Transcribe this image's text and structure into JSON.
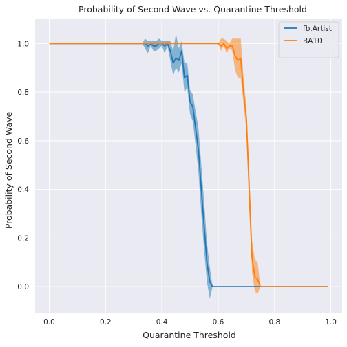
{
  "chart_data": {
    "type": "line",
    "title": "Probability of Second Wave vs. Quarantine Threshold",
    "xlabel": "Quarantine Threshold",
    "ylabel": "Probability of Second Wave",
    "xlim": [
      -0.05,
      1.04
    ],
    "ylim": [
      -0.11,
      1.1
    ],
    "xticks": [
      0.0,
      0.2,
      0.4,
      0.6,
      0.8,
      1.0
    ],
    "xtick_labels": [
      "0.0",
      "0.2",
      "0.4",
      "0.6",
      "0.8",
      "1.0"
    ],
    "yticks": [
      0.0,
      0.2,
      0.4,
      0.6,
      0.8,
      1.0
    ],
    "ytick_labels": [
      "0.0",
      "0.2",
      "0.4",
      "0.6",
      "0.8",
      "1.0"
    ],
    "grid": true,
    "legend_position": "top-right",
    "background": "#EAEAF2",
    "series": [
      {
        "name": "fb.Artist",
        "color": "#1F77B4",
        "x": [
          0.0,
          0.33,
          0.34,
          0.35,
          0.36,
          0.37,
          0.38,
          0.39,
          0.4,
          0.41,
          0.42,
          0.43,
          0.44,
          0.45,
          0.46,
          0.47,
          0.48,
          0.49,
          0.5,
          0.51,
          0.52,
          0.53,
          0.54,
          0.55,
          0.56,
          0.57,
          0.58,
          0.99
        ],
        "y": [
          1.0,
          1.0,
          1.0,
          0.99,
          1.0,
          0.99,
          0.99,
          1.0,
          1.0,
          0.99,
          1.0,
          0.97,
          0.92,
          0.94,
          0.93,
          0.97,
          0.86,
          0.87,
          0.76,
          0.74,
          0.65,
          0.56,
          0.4,
          0.25,
          0.1,
          0.02,
          0.0,
          0.0
        ],
        "low": [
          1.0,
          1.0,
          0.98,
          0.96,
          0.99,
          0.97,
          0.97,
          0.98,
          0.99,
          0.96,
          0.99,
          0.93,
          0.87,
          0.9,
          0.88,
          0.92,
          0.8,
          0.82,
          0.71,
          0.68,
          0.58,
          0.47,
          0.3,
          0.15,
          0.02,
          -0.05,
          0.0,
          0.0
        ],
        "high": [
          1.0,
          1.0,
          1.02,
          1.01,
          1.01,
          1.01,
          1.01,
          1.02,
          1.01,
          1.01,
          1.01,
          1.01,
          0.97,
          1.04,
          0.98,
          1.01,
          0.92,
          0.92,
          0.81,
          0.79,
          0.72,
          0.65,
          0.5,
          0.35,
          0.18,
          0.08,
          0.0,
          0.0
        ]
      },
      {
        "name": "BA10",
        "color": "#FF7F0E",
        "x": [
          0.0,
          0.41,
          0.42,
          0.43,
          0.6,
          0.61,
          0.62,
          0.63,
          0.64,
          0.65,
          0.66,
          0.67,
          0.68,
          0.69,
          0.7,
          0.71,
          0.72,
          0.73,
          0.74,
          0.75,
          0.99
        ],
        "y": [
          1.0,
          1.0,
          1.0,
          1.0,
          1.0,
          0.99,
          1.0,
          0.98,
          0.99,
          0.99,
          0.95,
          0.93,
          0.94,
          0.8,
          0.69,
          0.4,
          0.12,
          0.04,
          0.03,
          0.0,
          0.0
        ],
        "low": [
          1.0,
          1.0,
          0.99,
          1.0,
          1.0,
          0.97,
          0.99,
          0.96,
          0.98,
          0.97,
          0.89,
          0.86,
          0.86,
          0.75,
          0.64,
          0.32,
          0.06,
          -0.02,
          -0.03,
          0.0,
          0.0
        ],
        "high": [
          1.0,
          1.0,
          1.01,
          1.0,
          1.0,
          1.02,
          1.02,
          1.01,
          1.0,
          1.02,
          1.02,
          1.02,
          1.02,
          0.86,
          0.74,
          0.48,
          0.19,
          0.11,
          0.1,
          0.0,
          0.0
        ]
      }
    ]
  }
}
